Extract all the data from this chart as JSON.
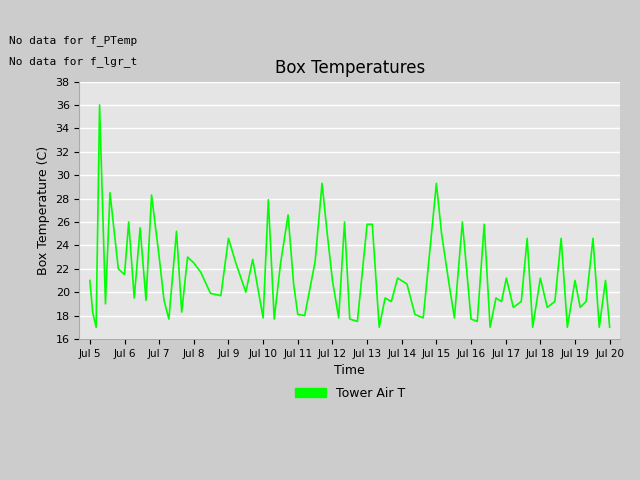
{
  "title": "Box Temperatures",
  "xlabel": "Time",
  "ylabel": "Box Temperature (C)",
  "ylim": [
    16,
    38
  ],
  "yticks": [
    16,
    18,
    20,
    22,
    24,
    26,
    28,
    30,
    32,
    34,
    36,
    38
  ],
  "no_data_texts": [
    "No data for f_PTemp",
    "No data for f_lgr_t"
  ],
  "legend_label": "Tower Air T",
  "line_color": "#00ff00",
  "x_labels": [
    "Jul 5",
    "Jul 6",
    "Jul 7",
    "Jul 8",
    "Jul 9",
    "Jul 10",
    "Jul 11",
    "Jul 12",
    "Jul 13",
    "Jul 14",
    "Jul 15",
    "Jul 16",
    "Jul 17",
    "Jul 18",
    "Jul 19",
    "Jul 20"
  ],
  "x_data": [
    0.0,
    0.08,
    0.18,
    0.28,
    0.45,
    0.58,
    0.82,
    1.0,
    1.12,
    1.28,
    1.45,
    1.62,
    1.78,
    2.0,
    2.14,
    2.28,
    2.5,
    2.65,
    2.82,
    3.0,
    3.2,
    3.48,
    3.78,
    4.0,
    4.2,
    4.5,
    4.7,
    5.0,
    5.15,
    5.32,
    5.5,
    5.72,
    5.88,
    6.0,
    6.2,
    6.5,
    6.7,
    6.85,
    7.0,
    7.18,
    7.35,
    7.5,
    7.72,
    8.0,
    8.15,
    8.35,
    8.52,
    8.7,
    8.88,
    9.15,
    9.38,
    9.62,
    9.78,
    10.0,
    10.15,
    10.35,
    10.52,
    10.75,
    11.0,
    11.18,
    11.38,
    11.55,
    11.72,
    11.88,
    12.02,
    12.22,
    12.45,
    12.62,
    12.78,
    13.0,
    13.2,
    13.42,
    13.6,
    13.78,
    14.0,
    14.15,
    14.32,
    14.52,
    14.7,
    14.88,
    15.0
  ],
  "y_data": [
    21.0,
    18.3,
    17.0,
    36.0,
    19.0,
    28.5,
    22.0,
    21.5,
    26.0,
    19.5,
    25.5,
    19.3,
    28.3,
    23.0,
    19.3,
    17.7,
    25.2,
    18.3,
    23.0,
    22.5,
    21.7,
    19.9,
    19.7,
    24.6,
    22.6,
    20.0,
    22.8,
    17.8,
    27.9,
    17.7,
    22.4,
    26.6,
    20.7,
    18.1,
    18.0,
    22.6,
    29.3,
    25.0,
    21.0,
    17.8,
    26.0,
    17.7,
    17.5,
    25.8,
    25.8,
    17.0,
    19.5,
    19.2,
    21.2,
    20.7,
    18.1,
    17.8,
    22.6,
    29.3,
    25.0,
    21.0,
    17.8,
    26.0,
    17.7,
    17.5,
    25.8,
    17.0,
    19.5,
    19.2,
    21.2,
    18.7,
    19.2,
    24.6,
    17.0,
    21.2,
    18.7,
    19.2,
    24.6,
    17.0,
    21.0,
    18.7,
    19.2,
    24.6,
    17.0,
    21.0,
    17.0
  ]
}
